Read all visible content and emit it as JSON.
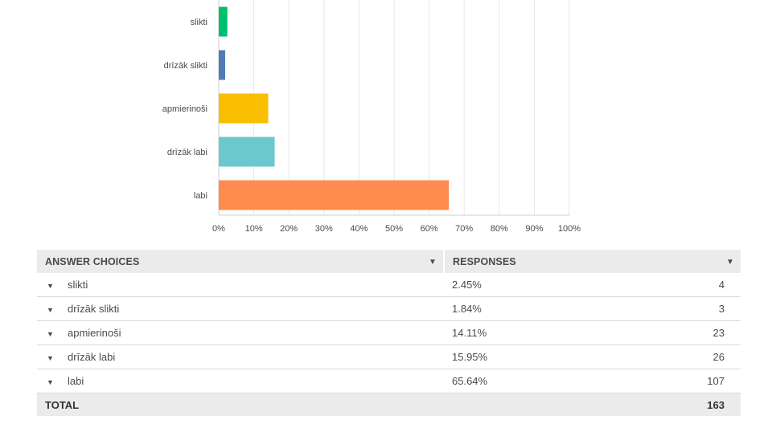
{
  "chart_data": {
    "type": "bar",
    "orientation": "horizontal",
    "categories": [
      "slikti",
      "drīzāk slikti",
      "apmierinoši",
      "drīzāk labi",
      "labi"
    ],
    "values": [
      2.45,
      1.84,
      14.11,
      15.95,
      65.64
    ],
    "colors": [
      "#00bf6f",
      "#507cb6",
      "#f9be00",
      "#6bc8cd",
      "#ff8b4f"
    ],
    "xlim": [
      0,
      100
    ],
    "xticks": [
      "0%",
      "10%",
      "20%",
      "30%",
      "40%",
      "50%",
      "60%",
      "70%",
      "80%",
      "90%",
      "100%"
    ],
    "grid": true
  },
  "table": {
    "headers": {
      "choices": "ANSWER CHOICES",
      "responses": "RESPONSES"
    },
    "rows": [
      {
        "choice": "slikti",
        "percent": "2.45%",
        "count": "4"
      },
      {
        "choice": "drīzāk slikti",
        "percent": "1.84%",
        "count": "3"
      },
      {
        "choice": "apmierinoši",
        "percent": "14.11%",
        "count": "23"
      },
      {
        "choice": "drīzāk labi",
        "percent": "15.95%",
        "count": "26"
      },
      {
        "choice": "labi",
        "percent": "65.64%",
        "count": "107"
      }
    ],
    "total_label": "TOTAL",
    "total": "163"
  }
}
